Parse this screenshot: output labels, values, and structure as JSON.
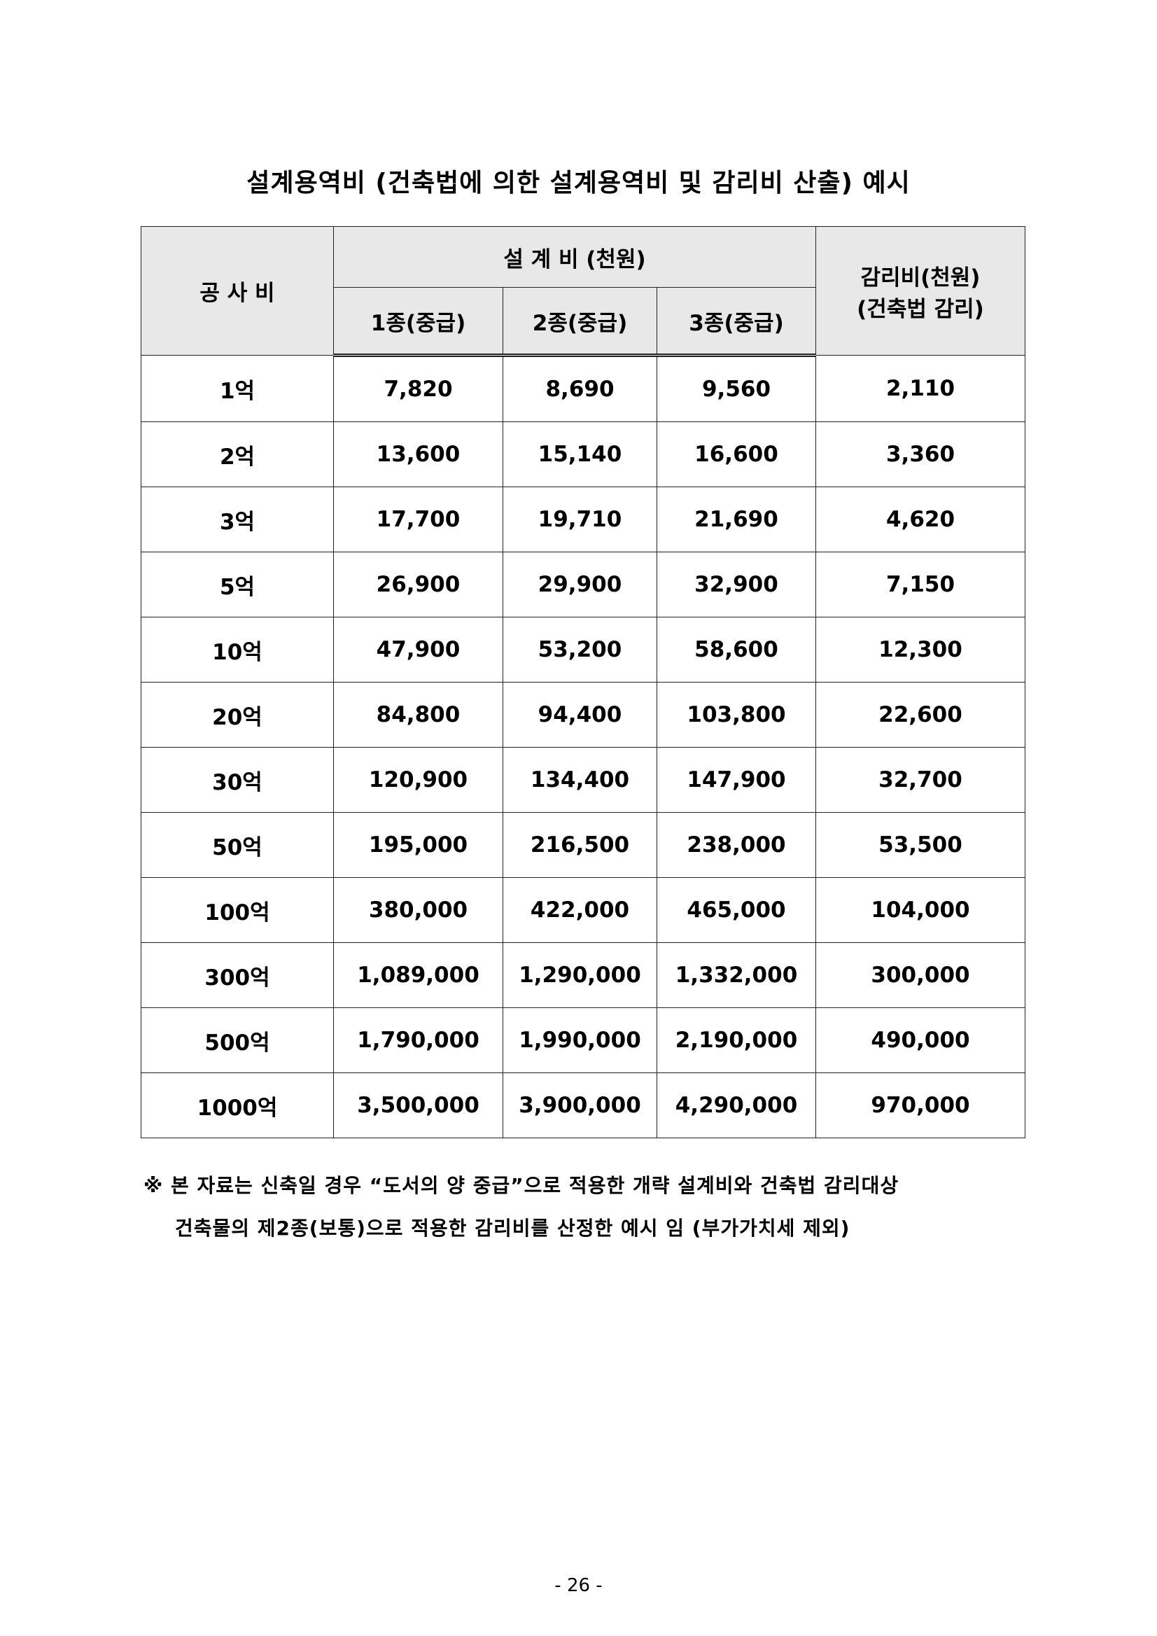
{
  "title": "설계용역비 (건축법에 의한 설계용역비 및 감리비 산출) 예시",
  "table": {
    "header": {
      "construction_cost": "공 사 비",
      "design_fee": "설 계 비 (천원)",
      "sub": [
        "1종(중급)",
        "2종(중급)",
        "3종(중급)"
      ],
      "supervision_line1": "감리비(천원)",
      "supervision_line2": "(건축법 감리)"
    },
    "rows": [
      [
        "1억",
        "7,820",
        "8,690",
        "9,560",
        "2,110"
      ],
      [
        "2억",
        "13,600",
        "15,140",
        "16,600",
        "3,360"
      ],
      [
        "3억",
        "17,700",
        "19,710",
        "21,690",
        "4,620"
      ],
      [
        "5억",
        "26,900",
        "29,900",
        "32,900",
        "7,150"
      ],
      [
        "10억",
        "47,900",
        "53,200",
        "58,600",
        "12,300"
      ],
      [
        "20억",
        "84,800",
        "94,400",
        "103,800",
        "22,600"
      ],
      [
        "30억",
        "120,900",
        "134,400",
        "147,900",
        "32,700"
      ],
      [
        "50억",
        "195,000",
        "216,500",
        "238,000",
        "53,500"
      ],
      [
        "100억",
        "380,000",
        "422,000",
        "465,000",
        "104,000"
      ],
      [
        "300억",
        "1,089,000",
        "1,290,000",
        "1,332,000",
        "300,000"
      ],
      [
        "500억",
        "1,790,000",
        "1,990,000",
        "2,190,000",
        "490,000"
      ],
      [
        "1000억",
        "3,500,000",
        "3,900,000",
        "4,290,000",
        "970,000"
      ]
    ]
  },
  "note": {
    "line1": "※ 본 자료는 신축일 경우 “도서의 양 중급”으로 적용한 개략 설계비와 건축법 감리대상",
    "line2": "건축물의 제2종(보통)으로 적용한 감리비를 산정한 예시 임 (부가가치세 제외)"
  },
  "page_number": "- 26 -"
}
